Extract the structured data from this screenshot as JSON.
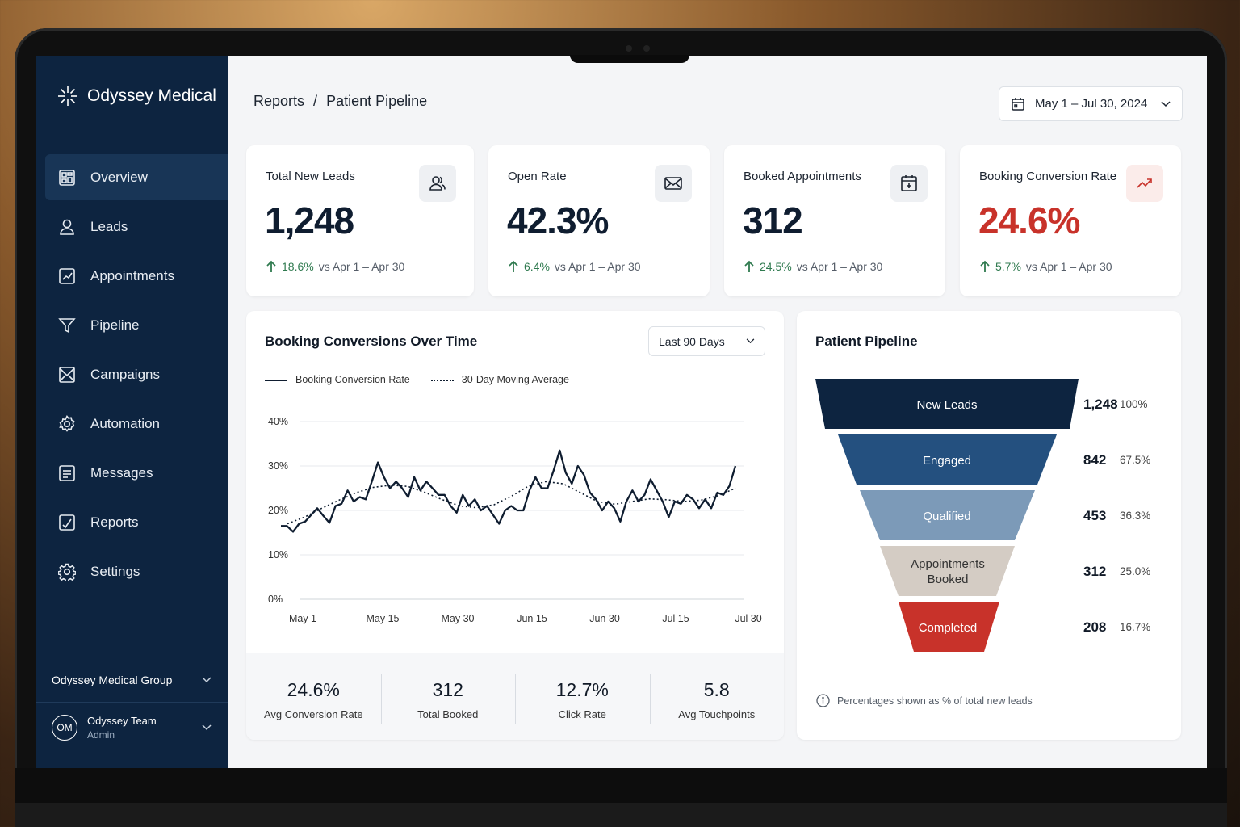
{
  "app": {
    "brand": "Odyssey Medical"
  },
  "sidebar": {
    "items": [
      {
        "label": "Overview",
        "icon": "dashboard-icon",
        "active": true
      },
      {
        "label": "Leads",
        "icon": "user-icon"
      },
      {
        "label": "Appointments",
        "icon": "appointment-icon"
      },
      {
        "label": "Pipeline",
        "icon": "filter-icon"
      },
      {
        "label": "Campaigns",
        "icon": "envelope-icon"
      },
      {
        "label": "Automation",
        "icon": "automation-icon"
      },
      {
        "label": "Messages",
        "icon": "messages-icon"
      },
      {
        "label": "Reports",
        "icon": "reports-icon"
      },
      {
        "label": "Settings",
        "icon": "gear-icon"
      }
    ],
    "org": "Odyssey Medical Group",
    "user": {
      "initials": "OM",
      "name": "Odyssey Team",
      "role": "Admin"
    }
  },
  "header": {
    "breadcrumb_parent": "Reports",
    "breadcrumb_sep": "/",
    "breadcrumb_current": "Patient Pipeline",
    "date_range": "May 1 – Jul 30, 2024"
  },
  "kpis": [
    {
      "label": "Total New Leads",
      "value": "1,248",
      "delta": "18.6%",
      "compare": "vs Apr 1 – Apr 30",
      "icon": "users-icon",
      "color": "#0f1d30"
    },
    {
      "label": "Open Rate",
      "value": "42.3%",
      "delta": "6.4%",
      "compare": "vs Apr 1 – Apr 30",
      "icon": "envelope-icon",
      "color": "#0f1d30"
    },
    {
      "label": "Booked Appointments",
      "value": "312",
      "delta": "24.5%",
      "compare": "vs Apr 1 – Apr 30",
      "icon": "calendar-icon",
      "color": "#0f1d30"
    },
    {
      "label": "Booking Conversion Rate",
      "value": "24.6%",
      "delta": "5.7%",
      "compare": "vs Apr 1 – Apr 30",
      "icon": "trend-up-icon",
      "color": "#c8322a"
    }
  ],
  "conversion_chart": {
    "title": "Booking Conversions Over Time",
    "range": "Last 90 Days",
    "legend": [
      "Booking Conversion Rate",
      "30-Day Moving Average"
    ],
    "stats": [
      {
        "value": "24.6%",
        "label": "Avg Conversion Rate"
      },
      {
        "value": "312",
        "label": "Total Booked"
      },
      {
        "value": "12.7%",
        "label": "Click Rate"
      },
      {
        "value": "5.8",
        "label": "Avg Touchpoints"
      }
    ]
  },
  "chart_data": {
    "type": "line",
    "title": "Booking Conversions Over Time",
    "xlabel": "",
    "ylabel": "",
    "ylim": [
      0,
      40
    ],
    "y_ticks": [
      "0%",
      "10%",
      "20%",
      "30%",
      "40%"
    ],
    "x_ticks": [
      "May 1",
      "May 15",
      "May 30",
      "Jun 15",
      "Jun 30",
      "Jul 15",
      "Jul 30"
    ],
    "series": [
      {
        "name": "Booking Conversion Rate",
        "style": "solid",
        "values": [
          16.5,
          16.5,
          15.2,
          17.0,
          17.5,
          19.0,
          20.5,
          18.8,
          17.2,
          21.0,
          21.5,
          24.5,
          22.0,
          23.0,
          22.5,
          26.5,
          30.8,
          27.5,
          25.0,
          26.5,
          25.0,
          23.0,
          27.5,
          24.5,
          26.5,
          25.0,
          23.5,
          23.5,
          21.0,
          19.5,
          23.5,
          21.0,
          22.5,
          20.0,
          21.0,
          19.0,
          17.0,
          20.0,
          21.0,
          20.0,
          20.0,
          24.5,
          27.5,
          25.0,
          25.0,
          29.0,
          33.5,
          28.5,
          26.0,
          30.0,
          28.0,
          24.0,
          22.5,
          20.0,
          22.0,
          20.5,
          17.5,
          22.0,
          24.5,
          22.0,
          23.5,
          27.0,
          24.5,
          22.0,
          18.5,
          22.0,
          21.5,
          23.5,
          22.5,
          20.5,
          22.5,
          20.5,
          24.0,
          23.5,
          25.5,
          30.0
        ]
      },
      {
        "name": "30-Day Moving Average",
        "style": "dotted",
        "values": [
          17.0,
          18.5,
          20.5,
          22.3,
          24.0,
          25.2,
          25.7,
          25.4,
          24.0,
          22.4,
          21.0,
          20.6,
          21.3,
          23.2,
          25.5,
          26.5,
          26.0,
          24.0,
          22.0,
          21.4,
          22.0,
          22.6,
          22.4,
          22.0,
          22.3,
          23.3,
          25.0
        ]
      }
    ]
  },
  "funnel": {
    "title": "Patient Pipeline",
    "note": "Percentages shown as % of total new leads",
    "stages": [
      {
        "label": "New Leads",
        "count": "1,248",
        "pct": "100%",
        "color": "#0d2440",
        "text_color": "#ffffff"
      },
      {
        "label": "Engaged",
        "count": "842",
        "pct": "67.5%",
        "color": "#24507f",
        "text_color": "#ffffff"
      },
      {
        "label": "Qualified",
        "count": "453",
        "pct": "36.3%",
        "color": "#7c9ab8",
        "text_color": "#ffffff"
      },
      {
        "label_line1": "Appointments",
        "label_line2": "Booked",
        "count": "312",
        "pct": "25.0%",
        "color": "#d4ccc4",
        "text_color": "#333333"
      },
      {
        "label": "Completed",
        "count": "208",
        "pct": "16.7%",
        "color": "#c8322a",
        "text_color": "#ffffff"
      }
    ]
  }
}
